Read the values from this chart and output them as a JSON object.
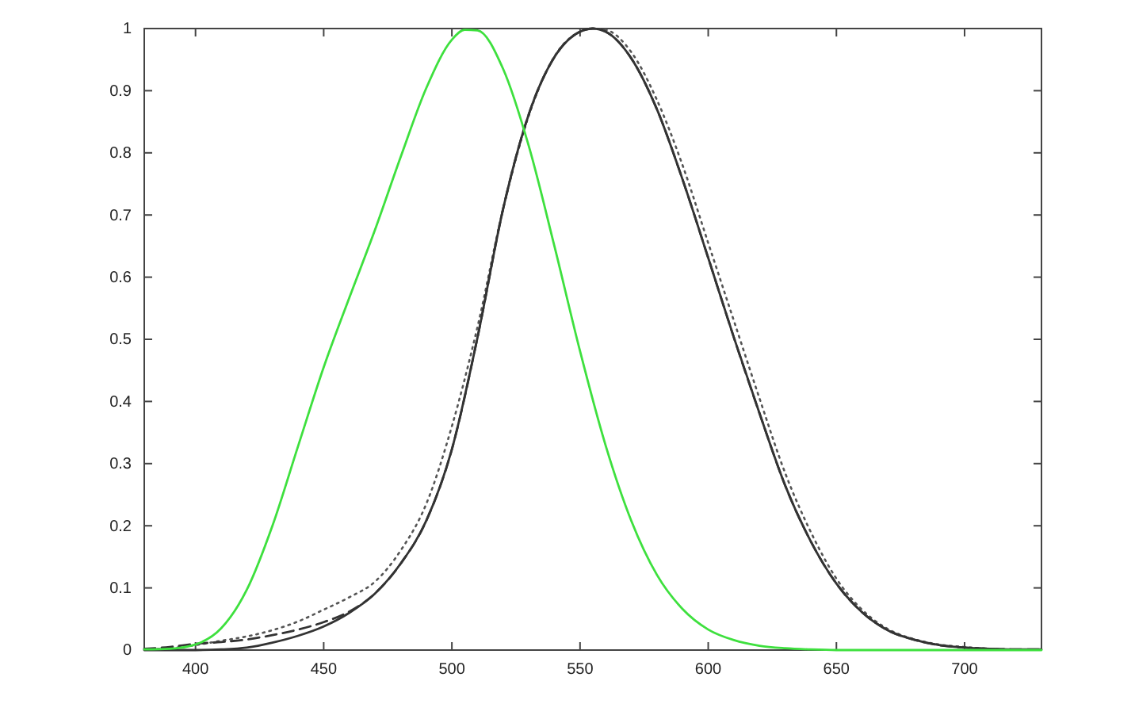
{
  "chart_data": {
    "type": "line",
    "xlim": [
      380,
      730
    ],
    "ylim": [
      0,
      1
    ],
    "xticks": [
      400,
      450,
      500,
      550,
      600,
      650,
      700
    ],
    "yticks": [
      0,
      0.1,
      0.2,
      0.3,
      0.4,
      0.5,
      0.6,
      0.7,
      0.8,
      0.9,
      1
    ],
    "series": [
      {
        "color": "#3ee03e",
        "line_style": "solid",
        "x": [
          380,
          390,
          400,
          410,
          420,
          430,
          440,
          450,
          460,
          470,
          480,
          490,
          500,
          505,
          510,
          520,
          530,
          540,
          550,
          560,
          570,
          580,
          590,
          600,
          610,
          620,
          630,
          640,
          650,
          660,
          670,
          680,
          690,
          700,
          710,
          720,
          730
        ],
        "values": [
          0.001,
          0.002,
          0.009,
          0.035,
          0.097,
          0.2,
          0.328,
          0.455,
          0.567,
          0.676,
          0.793,
          0.904,
          0.982,
          0.998,
          0.997,
          0.935,
          0.811,
          0.65,
          0.481,
          0.329,
          0.208,
          0.121,
          0.066,
          0.033,
          0.016,
          0.007,
          0.003,
          0.001,
          0,
          0,
          0,
          0,
          0,
          0,
          0,
          0,
          0
        ]
      },
      {
        "color": "#333333",
        "line_style": "solid",
        "x": [
          380,
          390,
          400,
          410,
          420,
          430,
          440,
          450,
          460,
          470,
          480,
          490,
          500,
          510,
          520,
          530,
          540,
          550,
          555,
          560,
          570,
          580,
          590,
          600,
          610,
          620,
          630,
          640,
          650,
          660,
          670,
          680,
          690,
          700,
          710,
          720,
          730
        ],
        "values": [
          0,
          0,
          0,
          0.001,
          0.004,
          0.012,
          0.023,
          0.038,
          0.06,
          0.091,
          0.139,
          0.208,
          0.323,
          0.503,
          0.71,
          0.862,
          0.954,
          0.995,
          1,
          0.995,
          0.952,
          0.87,
          0.757,
          0.631,
          0.503,
          0.381,
          0.265,
          0.175,
          0.107,
          0.061,
          0.032,
          0.017,
          0.008,
          0.004,
          0.002,
          0.001,
          0.001
        ]
      },
      {
        "color": "#333333",
        "line_style": "dashed",
        "x": [
          380,
          390,
          400,
          410,
          420,
          430,
          440,
          450,
          460,
          470,
          480,
          490,
          500,
          510,
          520,
          530,
          540,
          550,
          555,
          560,
          570,
          580,
          590,
          600,
          610,
          620,
          630,
          640,
          650,
          660,
          670,
          680,
          690,
          700,
          710,
          720,
          730
        ],
        "values": [
          0.002,
          0.005,
          0.01,
          0.013,
          0.017,
          0.024,
          0.033,
          0.045,
          0.062,
          0.091,
          0.139,
          0.208,
          0.323,
          0.503,
          0.71,
          0.862,
          0.954,
          0.995,
          1,
          0.995,
          0.952,
          0.87,
          0.757,
          0.631,
          0.503,
          0.381,
          0.265,
          0.175,
          0.107,
          0.061,
          0.032,
          0.017,
          0.008,
          0.004,
          0.002,
          0.001,
          0.001
        ]
      },
      {
        "color": "#555555",
        "line_style": "dotted",
        "x": [
          380,
          390,
          400,
          410,
          420,
          430,
          440,
          450,
          460,
          470,
          480,
          490,
          500,
          510,
          520,
          530,
          540,
          550,
          555,
          560,
          570,
          580,
          590,
          600,
          610,
          620,
          630,
          640,
          650,
          660,
          670,
          680,
          690,
          700,
          710,
          720,
          730
        ],
        "values": [
          0.001,
          0.003,
          0.008,
          0.015,
          0.022,
          0.032,
          0.046,
          0.065,
          0.085,
          0.11,
          0.16,
          0.235,
          0.36,
          0.52,
          0.71,
          0.86,
          0.955,
          0.995,
          1,
          0.998,
          0.962,
          0.885,
          0.78,
          0.655,
          0.53,
          0.405,
          0.285,
          0.19,
          0.115,
          0.065,
          0.034,
          0.018,
          0.009,
          0.005,
          0.002,
          0.001,
          0.001
        ]
      }
    ]
  }
}
